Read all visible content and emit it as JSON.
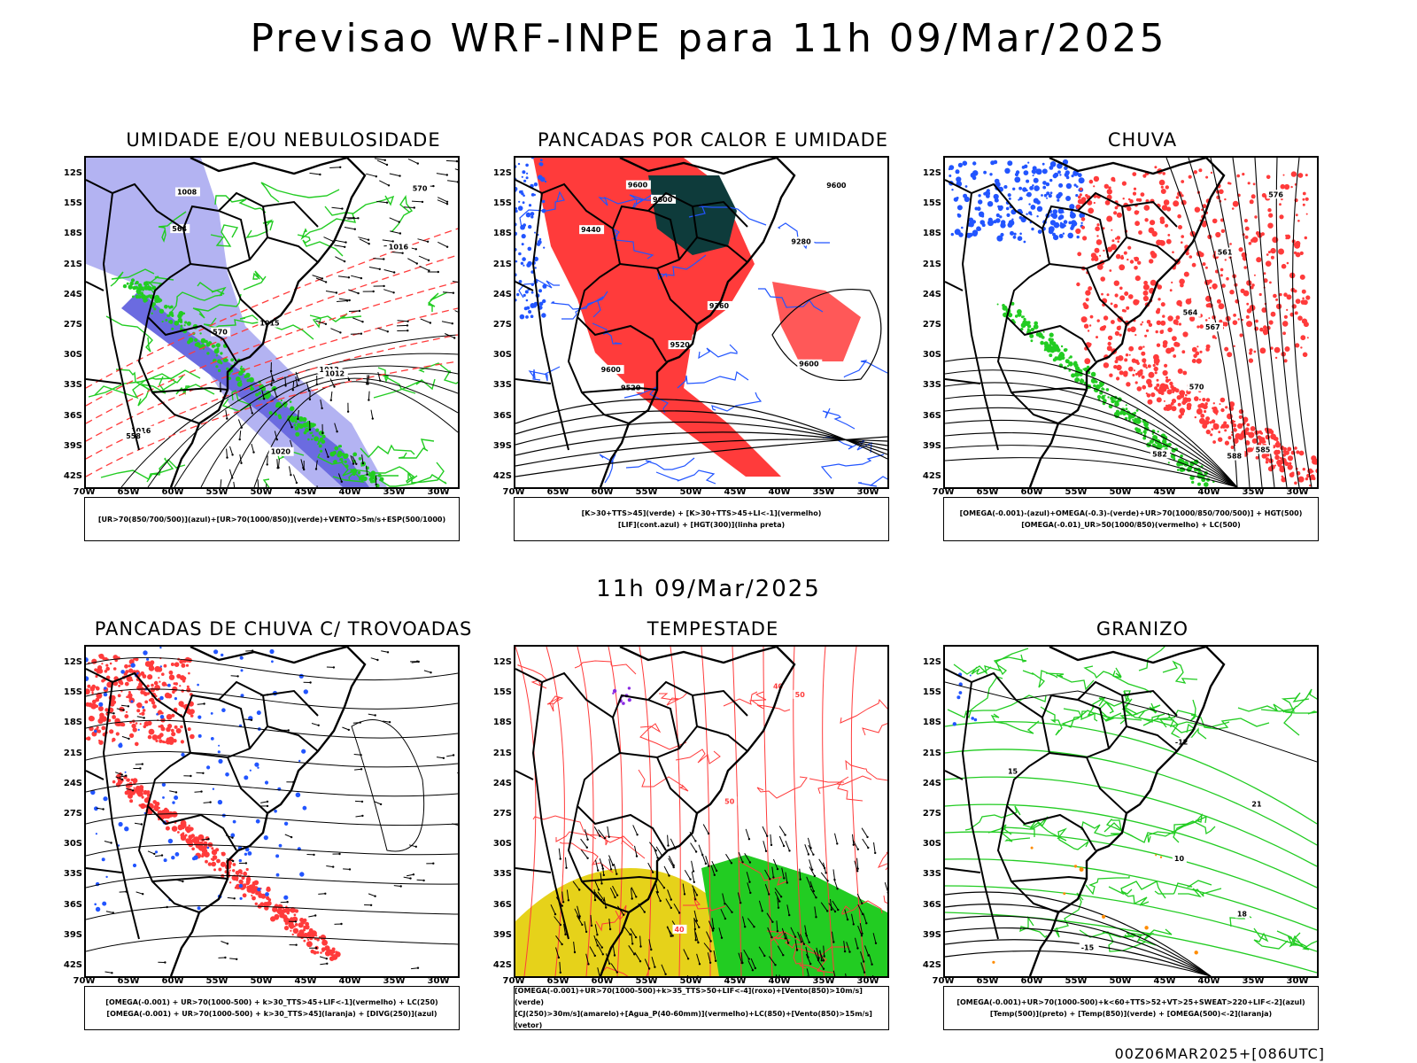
{
  "header": {
    "title": "Previsao WRF-INPE  para 11h 09/Mar/2025"
  },
  "middle": {
    "title": "11h 09/Mar/2025"
  },
  "footer": {
    "run": "00Z06MAR2025+[086UTC]"
  },
  "axes": {
    "lat_labels": [
      "12S",
      "15S",
      "18S",
      "21S",
      "24S",
      "27S",
      "30S",
      "33S",
      "36S",
      "39S",
      "42S"
    ],
    "lon_labels": [
      "70W",
      "65W",
      "60W",
      "55W",
      "50W",
      "45W",
      "40W",
      "35W",
      "30W"
    ]
  },
  "colors": {
    "red": "#ff3b3b",
    "green": "#22cc22",
    "blue": "#2255ff",
    "lavender": "#b3b3f2",
    "dark_green": "#0e3b3b",
    "yellow": "#e6d21a",
    "purple": "#8a2be2",
    "orange": "#ff8c00"
  },
  "panels": [
    {
      "title": "UMIDADE E/OU NEBULOSIDADE",
      "legend": [
        "[UR>70(850/700/500)](azul)+[UR>70(1000/850)](verde)+VENTO>5m/s+ESP(500/1000)"
      ],
      "contour_labels": [
        "1020",
        "1016",
        "1016",
        "1015",
        "1012",
        "1012",
        "1008",
        "570",
        "570",
        "558",
        "564"
      ]
    },
    {
      "title": "PANCADAS POR CALOR E UMIDADE",
      "legend": [
        "[K>30+TTS>45](verde) + [K>30+TTS>45+LI<-1](vermelho)",
        "[LIF](cont.azul) + [HGT(300)](linha preta)"
      ],
      "contour_labels": [
        "9600",
        "9600",
        "9600",
        "9600",
        "9600",
        "9520",
        "9440",
        "9360",
        "9280",
        "9520"
      ]
    },
    {
      "title": "CHUVA",
      "legend": [
        "[OMEGA(-0.001)-(azul)+OMEGA(-0.3)-(verde)+UR>70(1000/850/700/500)] + HGT(500)",
        "[OMEGA(-0.01)_UR>50(1000/850)(vermelho) + LC(500)"
      ],
      "contour_labels": [
        "588",
        "585",
        "576",
        "570",
        "567",
        "564",
        "561",
        "582"
      ]
    },
    {
      "title": "PANCADAS DE CHUVA C/ TROVOADAS",
      "legend": [
        "[OMEGA(-0.001) + UR>70(1000-500) + k>30_TTS>45+LIF<-1](vermelho) + LC(250)",
        "[OMEGA(-0.001) + UR>70(1000-500) + k>30_TTS>45](laranja) + [DIVG(250)](azul)"
      ],
      "contour_labels": []
    },
    {
      "title": "TEMPESTADE",
      "legend": [
        "[OMEGA(-0.001)+UR>70(1000-500)+k>35_TTS>50+LIF<-4](roxo)+[Vento(850)>10m/s](verde)",
        "[CJ(250)>30m/s](amarelo)+[Agua_P(40-60mm)](vermelho)+LC(850)+[Vento(850)>15m/s](vetor)"
      ],
      "contour_labels": [
        "50",
        "40",
        "40",
        "50"
      ]
    },
    {
      "title": "GRANIZO",
      "legend": [
        "[OMEGA(-0.001)+UR>70(1000-500)+k<60+TTS>52+VT>25+SWEAT>220+LIF<-2](azul)",
        "[Temp(500)](preto) + [Temp(850)](verde) + [OMEGA(500)<-2](laranja)"
      ],
      "contour_labels": [
        "-12",
        "-15",
        "10",
        "21",
        "18",
        "15"
      ]
    }
  ]
}
